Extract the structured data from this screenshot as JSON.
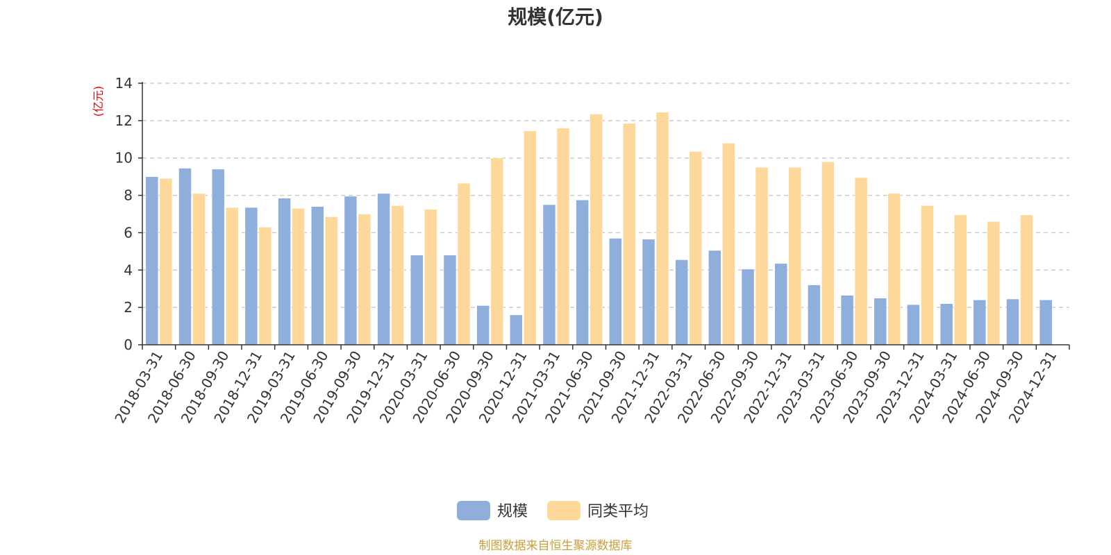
{
  "chart_data": {
    "type": "bar",
    "title": "规模(亿元)",
    "ylabel": "(亿元)",
    "ylim": [
      0,
      14
    ],
    "yticks": [
      0,
      2,
      4,
      6,
      8,
      10,
      12,
      14
    ],
    "grid": true,
    "legend_position": "bottom-center",
    "categories": [
      "2018-03-31",
      "2018-06-30",
      "2018-09-30",
      "2018-12-31",
      "2019-03-31",
      "2019-06-30",
      "2019-09-30",
      "2019-12-31",
      "2020-03-31",
      "2020-06-30",
      "2020-09-30",
      "2020-12-31",
      "2021-03-31",
      "2021-06-30",
      "2021-09-30",
      "2021-12-31",
      "2022-03-31",
      "2022-06-30",
      "2022-09-30",
      "2022-12-31",
      "2023-03-31",
      "2023-06-30",
      "2023-09-30",
      "2023-12-31",
      "2024-03-31",
      "2024-06-30",
      "2024-09-30",
      "2024-12-31"
    ],
    "series": [
      {
        "name": "规模",
        "color": "#8eaedb",
        "values": [
          9.0,
          9.45,
          9.4,
          7.35,
          7.85,
          7.4,
          7.95,
          8.1,
          4.8,
          4.8,
          2.1,
          1.6,
          7.5,
          7.75,
          5.7,
          5.65,
          4.55,
          5.05,
          4.05,
          4.35,
          3.2,
          2.65,
          2.5,
          2.15,
          2.2,
          2.4,
          2.45,
          2.4
        ]
      },
      {
        "name": "同类平均",
        "color": "#fdd89a",
        "values": [
          8.9,
          8.1,
          7.35,
          6.3,
          7.3,
          6.85,
          7.0,
          7.45,
          7.25,
          8.65,
          10.0,
          11.45,
          11.6,
          12.35,
          11.85,
          12.45,
          10.35,
          10.8,
          9.5,
          9.5,
          9.8,
          8.95,
          8.1,
          7.45,
          6.95,
          6.6,
          6.95,
          null
        ]
      }
    ]
  },
  "footer": {
    "source": "制图数据来自恒生聚源数据库"
  }
}
